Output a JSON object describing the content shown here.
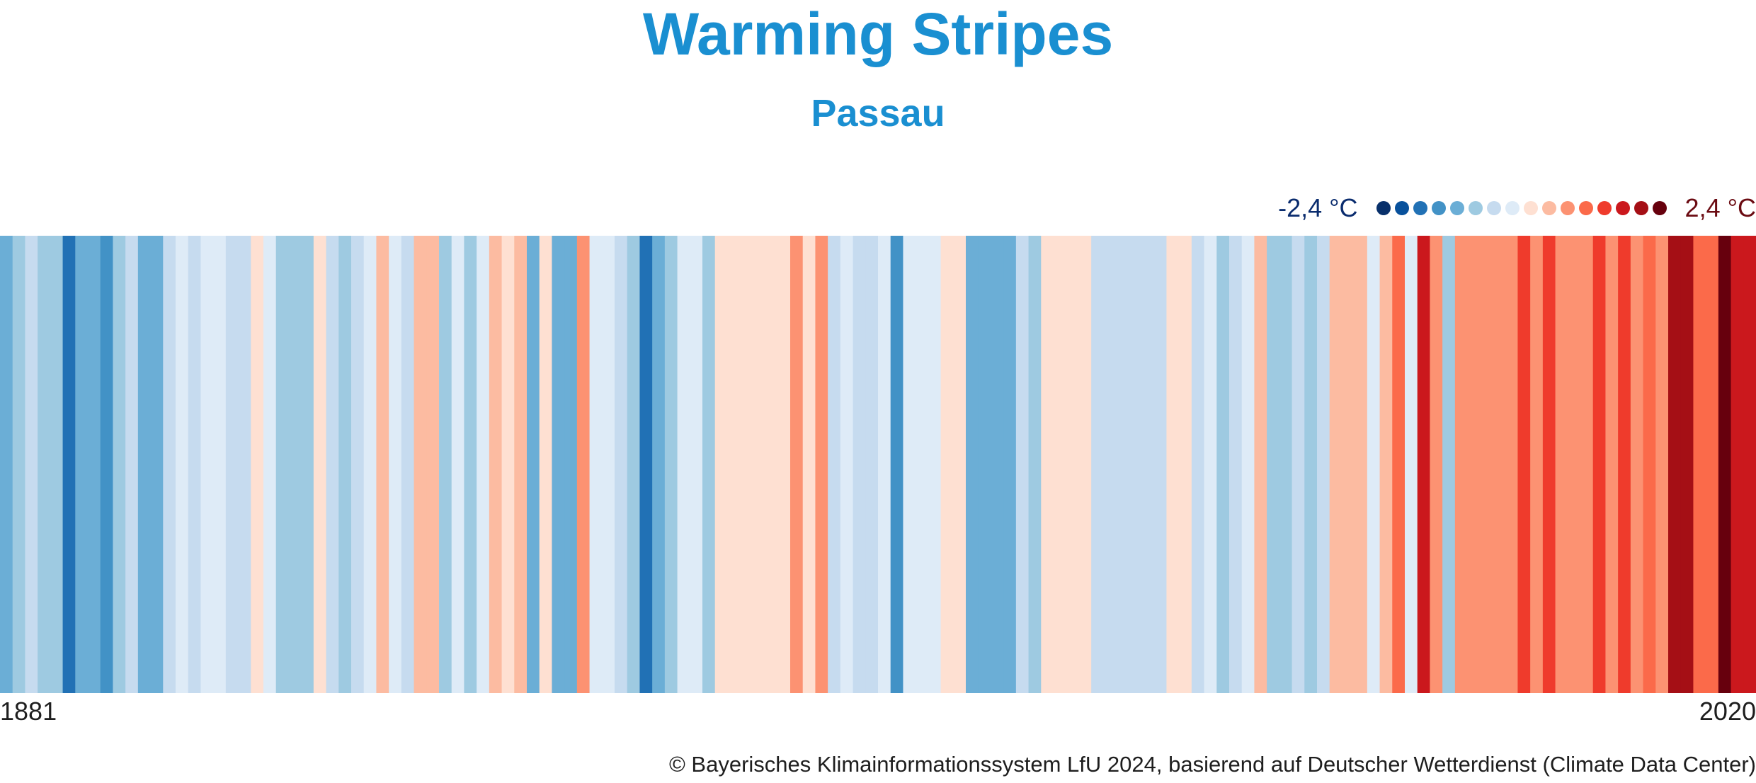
{
  "header": {
    "title": "Warming Stripes",
    "subtitle": "Passau"
  },
  "legend": {
    "min_label": "-2,4 °C",
    "max_label": "2,4 °C",
    "palette": [
      "#08306b",
      "#08519c",
      "#2171b5",
      "#4292c6",
      "#6baed6",
      "#9ecae1",
      "#c6dbef",
      "#deebf7",
      "#fee0d2",
      "#fcbba1",
      "#fc9272",
      "#fb6a4a",
      "#ef3b2c",
      "#cb181d",
      "#a50f15",
      "#67000d"
    ]
  },
  "chart_data": {
    "type": "heatmap",
    "title": "Warming Stripes",
    "subtitle": "Passau",
    "x_start_label": "1881",
    "x_end_label": "2020",
    "color_range": [
      -2.4,
      2.4
    ],
    "years": [
      1881,
      1882,
      1883,
      1884,
      1885,
      1886,
      1887,
      1888,
      1889,
      1890,
      1891,
      1892,
      1893,
      1894,
      1895,
      1896,
      1897,
      1898,
      1899,
      1900,
      1901,
      1902,
      1903,
      1904,
      1905,
      1906,
      1907,
      1908,
      1909,
      1910,
      1911,
      1912,
      1913,
      1914,
      1915,
      1916,
      1917,
      1918,
      1919,
      1920,
      1921,
      1922,
      1923,
      1924,
      1925,
      1926,
      1927,
      1928,
      1929,
      1930,
      1931,
      1932,
      1933,
      1934,
      1935,
      1936,
      1937,
      1938,
      1939,
      1940,
      1941,
      1942,
      1943,
      1944,
      1945,
      1946,
      1947,
      1948,
      1949,
      1950,
      1951,
      1952,
      1953,
      1954,
      1955,
      1956,
      1957,
      1958,
      1959,
      1960,
      1961,
      1962,
      1963,
      1964,
      1965,
      1966,
      1967,
      1968,
      1969,
      1970,
      1971,
      1972,
      1973,
      1974,
      1975,
      1976,
      1977,
      1978,
      1979,
      1980,
      1981,
      1982,
      1983,
      1984,
      1985,
      1986,
      1987,
      1988,
      1989,
      1990,
      1991,
      1992,
      1993,
      1994,
      1995,
      1996,
      1997,
      1998,
      1999,
      2000,
      2001,
      2002,
      2003,
      2004,
      2005,
      2006,
      2007,
      2008,
      2009,
      2010,
      2011,
      2012,
      2013,
      2014,
      2015,
      2016,
      2017,
      2018,
      2019,
      2020
    ],
    "anomalies": [
      -1.1,
      -0.8,
      -0.5,
      -0.8,
      -0.8,
      -1.7,
      -1.1,
      -1.1,
      -1.4,
      -0.8,
      -0.5,
      -1.1,
      -1.1,
      -0.5,
      -0.1,
      -0.5,
      -0.3,
      -0.1,
      -0.5,
      -0.5,
      0.1,
      -0.3,
      -0.8,
      -0.8,
      -0.8,
      0.1,
      -0.5,
      -0.8,
      -0.5,
      -0.3,
      0.4,
      -0.3,
      -0.5,
      0.4,
      0.4,
      -0.8,
      -0.1,
      -0.8,
      -0.3,
      0.4,
      0.2,
      0.4,
      -1.1,
      0.2,
      -1.1,
      -1.1,
      0.6,
      -0.3,
      -0.3,
      -0.5,
      -0.7,
      -1.7,
      -1.1,
      -0.8,
      -0.3,
      -0.1,
      -0.8,
      0.2,
      0.2,
      0.2,
      0.2,
      0.2,
      0.2,
      0.6,
      0.2,
      0.6,
      -0.5,
      -0.3,
      -0.5,
      -0.5,
      -0.1,
      -1.4,
      -0.3,
      -0.3,
      -0.3,
      0.2,
      0.1,
      -1.1,
      -1.1,
      -1.1,
      -1.1,
      -0.5,
      -0.8,
      0.1,
      0.1,
      0.1,
      0.1,
      -0.5,
      -0.5,
      -0.5,
      -0.5,
      -0.5,
      -0.5,
      0.1,
      0.1,
      -0.5,
      -0.3,
      -0.8,
      -0.5,
      -0.3,
      0.4,
      -0.8,
      -0.8,
      -0.5,
      -0.8,
      -0.5,
      0.4,
      0.4,
      0.4,
      -0.3,
      0.4,
      1.0,
      -0.3,
      1.6,
      0.6,
      -0.8,
      0.6,
      0.6,
      0.6,
      0.8,
      0.6,
      1.2,
      0.8,
      1.2,
      0.6,
      0.8,
      0.8,
      1.2,
      0.6,
      1.2,
      0.8,
      1.0,
      0.6,
      1.8,
      1.8,
      1.0,
      1.0,
      2.4,
      1.6,
      1.6
    ]
  },
  "axis": {
    "start": "1881",
    "end": "2020"
  },
  "credit": "© Bayerisches Klimainformationssystem LfU 2024, basierend auf Deutscher Wetterdienst (Climate Data Center)"
}
